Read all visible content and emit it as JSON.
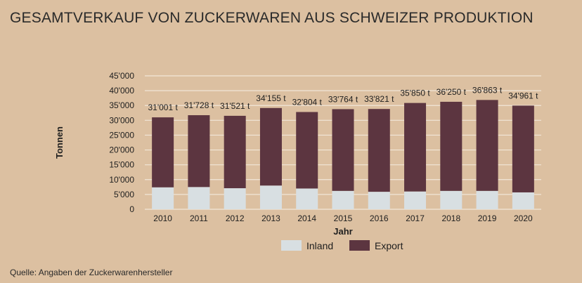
{
  "title": "GESAMTVERKAUF VON ZUCKERWAREN AUS SCHWEIZER PRODUKTION",
  "source": "Quelle: Angaben der Zuckerwarenhersteller",
  "colors": {
    "inland": "#d8dfe2",
    "export": "#5c3540",
    "grid": "#f1e6d8"
  },
  "chart_data": {
    "type": "bar",
    "stacked": true,
    "xlabel": "Jahr",
    "ylabel": "Tonnen",
    "ylim": [
      0,
      45000
    ],
    "yticks": [
      "0",
      "5'000",
      "10'000",
      "15'000",
      "20'000",
      "25'000",
      "30'000",
      "35'000",
      "40'000",
      "45'000"
    ],
    "categories": [
      "2010",
      "2011",
      "2012",
      "2013",
      "2014",
      "2015",
      "2016",
      "2017",
      "2018",
      "2019",
      "2020"
    ],
    "totals": [
      31001,
      31728,
      31521,
      34155,
      32804,
      33764,
      33821,
      35850,
      36250,
      36863,
      34961
    ],
    "total_labels": [
      "31'001 t",
      "31'728 t",
      "31'521 t",
      "34'155 t",
      "32'804 t",
      "33'764 t",
      "33'821 t",
      "35'850 t",
      "36'250 t",
      "36'863 t",
      "34'961 t"
    ],
    "series": [
      {
        "name": "Inland",
        "values": [
          7400,
          7500,
          7100,
          8000,
          7000,
          6200,
          5900,
          6000,
          6200,
          6200,
          5700
        ]
      },
      {
        "name": "Export",
        "values": [
          23601,
          24228,
          24421,
          26155,
          25804,
          27564,
          27921,
          29850,
          30050,
          30663,
          29261
        ]
      }
    ],
    "grid": true,
    "legend": "bottom"
  }
}
